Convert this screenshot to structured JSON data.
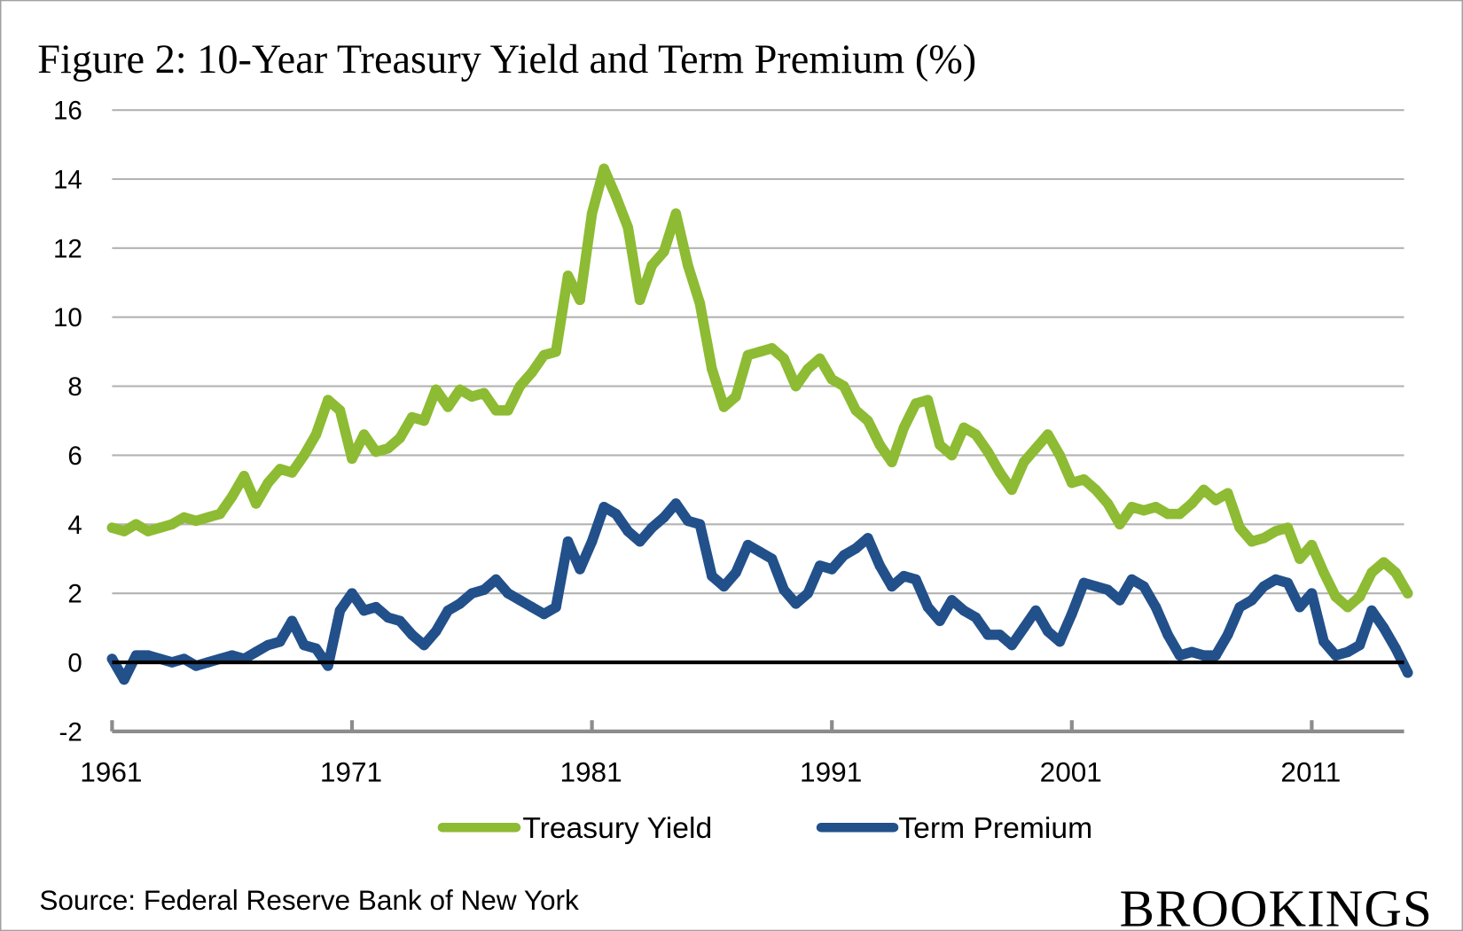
{
  "chart_data": {
    "type": "line",
    "title": "Figure 2: 10-Year Treasury Yield and Term Premium (%)",
    "xlabel": "",
    "ylabel": "",
    "ylim": [
      -2,
      16
    ],
    "xlim": [
      1961,
      2015
    ],
    "yticks": [
      "16",
      "14",
      "12",
      "10",
      "8",
      "6",
      "4",
      "2",
      "0",
      "-2"
    ],
    "ytick_values": [
      16,
      14,
      12,
      10,
      8,
      6,
      4,
      2,
      0,
      -2
    ],
    "xticks": [
      "1961",
      "1971",
      "1981",
      "1991",
      "2001",
      "2011"
    ],
    "xtick_values": [
      1961,
      1971,
      1981,
      1991,
      2001,
      2011
    ],
    "grid": true,
    "legend_placement": "bottom-center",
    "colors": {
      "treasury": "#8dbb33",
      "premium": "#22508a",
      "zero_line": "#000000",
      "grid": "#b3b3b3",
      "axis": "#8c8c8c"
    },
    "x_start": 1961,
    "x_step": 0.5,
    "series": [
      {
        "name": "Treasury Yield",
        "values": [
          3.9,
          3.8,
          4.0,
          3.8,
          3.9,
          4.0,
          4.2,
          4.1,
          4.2,
          4.3,
          4.8,
          5.4,
          4.6,
          5.2,
          5.6,
          5.5,
          6.0,
          6.6,
          7.6,
          7.3,
          5.9,
          6.6,
          6.1,
          6.2,
          6.5,
          7.1,
          7.0,
          7.9,
          7.4,
          7.9,
          7.7,
          7.8,
          7.3,
          7.3,
          8.0,
          8.4,
          8.9,
          9.0,
          11.2,
          10.5,
          13.0,
          14.3,
          13.5,
          12.6,
          10.5,
          11.5,
          11.9,
          13.0,
          11.5,
          10.4,
          8.5,
          7.4,
          7.7,
          8.9,
          9.0,
          9.1,
          8.8,
          8.0,
          8.5,
          8.8,
          8.2,
          8.0,
          7.3,
          7.0,
          6.3,
          5.8,
          6.8,
          7.5,
          7.6,
          6.3,
          6.0,
          6.8,
          6.6,
          6.1,
          5.5,
          5.0,
          5.8,
          6.2,
          6.6,
          6.0,
          5.2,
          5.3,
          5.0,
          4.6,
          4.0,
          4.5,
          4.4,
          4.5,
          4.3,
          4.3,
          4.6,
          5.0,
          4.7,
          4.9,
          3.9,
          3.5,
          3.6,
          3.8,
          3.9,
          3.0,
          3.4,
          2.6,
          1.9,
          1.6,
          1.9,
          2.6,
          2.9,
          2.6,
          2.0
        ]
      },
      {
        "name": "Term Premium",
        "values": [
          0.1,
          -0.5,
          0.2,
          0.2,
          0.1,
          0.0,
          0.1,
          -0.1,
          0.0,
          0.1,
          0.2,
          0.1,
          0.3,
          0.5,
          0.6,
          1.2,
          0.5,
          0.4,
          -0.1,
          1.5,
          2.0,
          1.5,
          1.6,
          1.3,
          1.2,
          0.8,
          0.5,
          0.9,
          1.5,
          1.7,
          2.0,
          2.1,
          2.4,
          2.0,
          1.8,
          1.6,
          1.4,
          1.6,
          3.5,
          2.7,
          3.5,
          4.5,
          4.3,
          3.8,
          3.5,
          3.9,
          4.2,
          4.6,
          4.1,
          4.0,
          2.5,
          2.2,
          2.6,
          3.4,
          3.2,
          3.0,
          2.1,
          1.7,
          2.0,
          2.8,
          2.7,
          3.1,
          3.3,
          3.6,
          2.8,
          2.2,
          2.5,
          2.4,
          1.6,
          1.2,
          1.8,
          1.5,
          1.3,
          0.8,
          0.8,
          0.5,
          1.0,
          1.5,
          0.9,
          0.6,
          1.4,
          2.3,
          2.2,
          2.1,
          1.8,
          2.4,
          2.2,
          1.6,
          0.8,
          0.2,
          0.3,
          0.2,
          0.2,
          0.8,
          1.6,
          1.8,
          2.2,
          2.4,
          2.3,
          1.6,
          2.0,
          0.6,
          0.2,
          0.3,
          0.5,
          1.5,
          1.0,
          0.4,
          -0.3
        ]
      }
    ]
  },
  "legend": {
    "items": [
      "Treasury Yield",
      "Term Premium"
    ]
  },
  "footer": {
    "source": "Source: Federal Reserve Bank of New York",
    "brand": "BROOKINGS"
  }
}
